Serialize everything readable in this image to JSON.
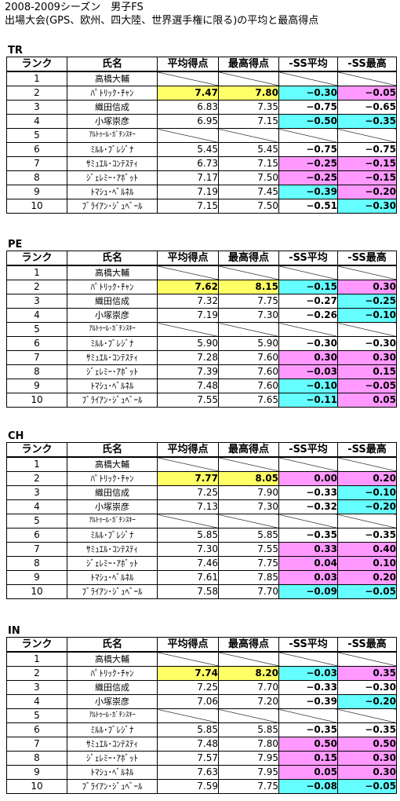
{
  "title_line1": "2008-2009シーズン　男子FS",
  "title_line2": "出場大会(GPS、欧州、四大陸、世界選手権に限る)の平均と最高得点",
  "headers": {
    "rank": "ランク",
    "name": "氏名",
    "avg": "平均得点",
    "max": "最高得点",
    "ss_avg": "-SS平均",
    "ss_max": "-SS最高"
  },
  "colors": {
    "yellow": "#ffff66",
    "cyan": "#66ffff",
    "pink": "#ff99ff"
  },
  "sections": [
    {
      "label": "TR",
      "rows": [
        {
          "rank": "1",
          "name": "高橋大輔",
          "avg": "",
          "max": "",
          "ss_avg": "",
          "ss_max": "",
          "ss_avg_color": "",
          "ss_max_color": "",
          "highlight": false,
          "blank": true
        },
        {
          "rank": "2",
          "name": "ﾊﾟﾄﾘｯｸ･ﾁｬﾝ",
          "avg": "7.47",
          "max": "7.80",
          "ss_avg": "−0.30",
          "ss_max": "−0.05",
          "ss_avg_color": "cyan",
          "ss_max_color": "pink",
          "highlight": true,
          "blank": false
        },
        {
          "rank": "3",
          "name": "織田信成",
          "avg": "6.83",
          "max": "7.35",
          "ss_avg": "−0.75",
          "ss_max": "−0.65",
          "ss_avg_color": "",
          "ss_max_color": "",
          "highlight": false,
          "blank": false
        },
        {
          "rank": "4",
          "name": "小塚崇彦",
          "avg": "6.95",
          "max": "7.15",
          "ss_avg": "−0.50",
          "ss_max": "−0.35",
          "ss_avg_color": "cyan",
          "ss_max_color": "cyan",
          "highlight": false,
          "blank": false
        },
        {
          "rank": "5",
          "name": "ｱﾙﾄｩｰﾙ･ｶﾞﾁﾝｽｷｰ",
          "avg": "",
          "max": "",
          "ss_avg": "",
          "ss_max": "",
          "ss_avg_color": "",
          "ss_max_color": "",
          "highlight": false,
          "blank": true,
          "narrow": true
        },
        {
          "rank": "6",
          "name": "ﾐﾙﾙ･ﾌﾞﾚｼﾞﾅ",
          "avg": "5.45",
          "max": "5.45",
          "ss_avg": "−0.75",
          "ss_max": "−0.75",
          "ss_avg_color": "",
          "ss_max_color": "",
          "highlight": false,
          "blank": false
        },
        {
          "rank": "7",
          "name": "ｻﾐｭｴﾙ･ｺﾝﾃｽﾃｨ",
          "avg": "6.73",
          "max": "7.15",
          "ss_avg": "−0.25",
          "ss_max": "−0.15",
          "ss_avg_color": "pink",
          "ss_max_color": "pink",
          "highlight": false,
          "blank": false
        },
        {
          "rank": "8",
          "name": "ｼﾞｪﾚﾐｰ･ｱﾎﾞｯﾄ",
          "avg": "7.17",
          "max": "7.50",
          "ss_avg": "−0.25",
          "ss_max": "−0.15",
          "ss_avg_color": "pink",
          "ss_max_color": "pink",
          "highlight": false,
          "blank": false
        },
        {
          "rank": "9",
          "name": "ﾄﾏｼｭ･ﾍﾞﾙﾈﾙ",
          "avg": "7.19",
          "max": "7.45",
          "ss_avg": "−0.39",
          "ss_max": "−0.20",
          "ss_avg_color": "cyan",
          "ss_max_color": "pink",
          "highlight": false,
          "blank": false
        },
        {
          "rank": "10",
          "name": "ﾌﾞﾗｲｱﾝ･ｼﾞｭﾍﾞｰﾙ",
          "avg": "7.15",
          "max": "7.50",
          "ss_avg": "−0.51",
          "ss_max": "−0.30",
          "ss_avg_color": "",
          "ss_max_color": "cyan",
          "highlight": false,
          "blank": false
        }
      ]
    },
    {
      "label": "PE",
      "rows": [
        {
          "rank": "1",
          "name": "高橋大輔",
          "avg": "",
          "max": "",
          "ss_avg": "",
          "ss_max": "",
          "ss_avg_color": "",
          "ss_max_color": "",
          "highlight": false,
          "blank": true
        },
        {
          "rank": "2",
          "name": "ﾊﾟﾄﾘｯｸ･ﾁｬﾝ",
          "avg": "7.62",
          "max": "8.15",
          "ss_avg": "−0.15",
          "ss_max": "0.30",
          "ss_avg_color": "cyan",
          "ss_max_color": "pink",
          "highlight": true,
          "blank": false
        },
        {
          "rank": "3",
          "name": "織田信成",
          "avg": "7.32",
          "max": "7.75",
          "ss_avg": "−0.27",
          "ss_max": "−0.25",
          "ss_avg_color": "",
          "ss_max_color": "cyan",
          "highlight": false,
          "blank": false
        },
        {
          "rank": "4",
          "name": "小塚崇彦",
          "avg": "7.19",
          "max": "7.30",
          "ss_avg": "−0.26",
          "ss_max": "−0.10",
          "ss_avg_color": "",
          "ss_max_color": "cyan",
          "highlight": false,
          "blank": false
        },
        {
          "rank": "5",
          "name": "ｱﾙﾄｩｰﾙ･ｶﾞﾁﾝｽｷｰ",
          "avg": "",
          "max": "",
          "ss_avg": "",
          "ss_max": "",
          "ss_avg_color": "",
          "ss_max_color": "",
          "highlight": false,
          "blank": true,
          "narrow": true
        },
        {
          "rank": "6",
          "name": "ﾐﾙﾙ･ﾌﾞﾚｼﾞﾅ",
          "avg": "5.90",
          "max": "5.90",
          "ss_avg": "−0.30",
          "ss_max": "−0.30",
          "ss_avg_color": "",
          "ss_max_color": "",
          "highlight": false,
          "blank": false
        },
        {
          "rank": "7",
          "name": "ｻﾐｭｴﾙ･ｺﾝﾃｽﾃｨ",
          "avg": "7.28",
          "max": "7.60",
          "ss_avg": "0.30",
          "ss_max": "0.30",
          "ss_avg_color": "pink",
          "ss_max_color": "pink",
          "highlight": false,
          "blank": false
        },
        {
          "rank": "8",
          "name": "ｼﾞｪﾚﾐｰ･ｱﾎﾞｯﾄ",
          "avg": "7.39",
          "max": "7.60",
          "ss_avg": "−0.03",
          "ss_max": "0.15",
          "ss_avg_color": "pink",
          "ss_max_color": "pink",
          "highlight": false,
          "blank": false
        },
        {
          "rank": "9",
          "name": "ﾄﾏｼｭ･ﾍﾞﾙﾈﾙ",
          "avg": "7.48",
          "max": "7.60",
          "ss_avg": "−0.10",
          "ss_max": "−0.05",
          "ss_avg_color": "cyan",
          "ss_max_color": "pink",
          "highlight": false,
          "blank": false
        },
        {
          "rank": "10",
          "name": "ﾌﾞﾗｲｱﾝ･ｼﾞｭﾍﾞｰﾙ",
          "avg": "7.55",
          "max": "7.65",
          "ss_avg": "−0.11",
          "ss_max": "0.05",
          "ss_avg_color": "cyan",
          "ss_max_color": "pink",
          "highlight": false,
          "blank": false
        }
      ]
    },
    {
      "label": "CH",
      "rows": [
        {
          "rank": "1",
          "name": "高橋大輔",
          "avg": "",
          "max": "",
          "ss_avg": "",
          "ss_max": "",
          "ss_avg_color": "",
          "ss_max_color": "",
          "highlight": false,
          "blank": true
        },
        {
          "rank": "2",
          "name": "ﾊﾟﾄﾘｯｸ･ﾁｬﾝ",
          "avg": "7.77",
          "max": "8.05",
          "ss_avg": "0.00",
          "ss_max": "0.20",
          "ss_avg_color": "pink",
          "ss_max_color": "pink",
          "highlight": true,
          "blank": false
        },
        {
          "rank": "3",
          "name": "織田信成",
          "avg": "7.25",
          "max": "7.90",
          "ss_avg": "−0.33",
          "ss_max": "−0.10",
          "ss_avg_color": "",
          "ss_max_color": "cyan",
          "highlight": false,
          "blank": false
        },
        {
          "rank": "4",
          "name": "小塚崇彦",
          "avg": "7.13",
          "max": "7.30",
          "ss_avg": "−0.32",
          "ss_max": "−0.20",
          "ss_avg_color": "",
          "ss_max_color": "cyan",
          "highlight": false,
          "blank": false
        },
        {
          "rank": "5",
          "name": "ｱﾙﾄｩｰﾙ･ｶﾞﾁﾝｽｷｰ",
          "avg": "",
          "max": "",
          "ss_avg": "",
          "ss_max": "",
          "ss_avg_color": "",
          "ss_max_color": "",
          "highlight": false,
          "blank": true,
          "narrow": true
        },
        {
          "rank": "6",
          "name": "ﾐﾙﾙ･ﾌﾞﾚｼﾞﾅ",
          "avg": "5.85",
          "max": "5.85",
          "ss_avg": "−0.35",
          "ss_max": "−0.35",
          "ss_avg_color": "",
          "ss_max_color": "",
          "highlight": false,
          "blank": false
        },
        {
          "rank": "7",
          "name": "ｻﾐｭｴﾙ･ｺﾝﾃｽﾃｨ",
          "avg": "7.30",
          "max": "7.55",
          "ss_avg": "0.33",
          "ss_max": "0.40",
          "ss_avg_color": "pink",
          "ss_max_color": "pink",
          "highlight": false,
          "blank": false
        },
        {
          "rank": "8",
          "name": "ｼﾞｪﾚﾐｰ･ｱﾎﾞｯﾄ",
          "avg": "7.46",
          "max": "7.75",
          "ss_avg": "0.04",
          "ss_max": "0.10",
          "ss_avg_color": "pink",
          "ss_max_color": "pink",
          "highlight": false,
          "blank": false
        },
        {
          "rank": "9",
          "name": "ﾄﾏｼｭ･ﾍﾞﾙﾈﾙ",
          "avg": "7.61",
          "max": "7.85",
          "ss_avg": "0.03",
          "ss_max": "0.20",
          "ss_avg_color": "pink",
          "ss_max_color": "pink",
          "highlight": false,
          "blank": false
        },
        {
          "rank": "10",
          "name": "ﾌﾞﾗｲｱﾝ･ｼﾞｭﾍﾞｰﾙ",
          "avg": "7.58",
          "max": "7.70",
          "ss_avg": "−0.09",
          "ss_max": "−0.05",
          "ss_avg_color": "cyan",
          "ss_max_color": "cyan",
          "highlight": false,
          "blank": false
        }
      ]
    },
    {
      "label": "IN",
      "rows": [
        {
          "rank": "1",
          "name": "高橋大輔",
          "avg": "",
          "max": "",
          "ss_avg": "",
          "ss_max": "",
          "ss_avg_color": "",
          "ss_max_color": "",
          "highlight": false,
          "blank": true
        },
        {
          "rank": "2",
          "name": "ﾊﾟﾄﾘｯｸ･ﾁｬﾝ",
          "avg": "7.74",
          "max": "8.20",
          "ss_avg": "−0.03",
          "ss_max": "0.35",
          "ss_avg_color": "cyan",
          "ss_max_color": "pink",
          "highlight": true,
          "blank": false
        },
        {
          "rank": "3",
          "name": "織田信成",
          "avg": "7.25",
          "max": "7.70",
          "ss_avg": "−0.33",
          "ss_max": "−0.30",
          "ss_avg_color": "",
          "ss_max_color": "",
          "highlight": false,
          "blank": false
        },
        {
          "rank": "4",
          "name": "小塚崇彦",
          "avg": "7.06",
          "max": "7.20",
          "ss_avg": "−0.39",
          "ss_max": "−0.20",
          "ss_avg_color": "",
          "ss_max_color": "cyan",
          "highlight": false,
          "blank": false
        },
        {
          "rank": "5",
          "name": "ｱﾙﾄｩｰﾙ･ｶﾞﾁﾝｽｷｰ",
          "avg": "",
          "max": "",
          "ss_avg": "",
          "ss_max": "",
          "ss_avg_color": "",
          "ss_max_color": "",
          "highlight": false,
          "blank": true,
          "narrow": true
        },
        {
          "rank": "6",
          "name": "ﾐﾙﾙ･ﾌﾞﾚｼﾞﾅ",
          "avg": "5.85",
          "max": "5.85",
          "ss_avg": "−0.35",
          "ss_max": "−0.35",
          "ss_avg_color": "",
          "ss_max_color": "",
          "highlight": false,
          "blank": false
        },
        {
          "rank": "7",
          "name": "ｻﾐｭｴﾙ･ｺﾝﾃｽﾃｨ",
          "avg": "7.48",
          "max": "7.80",
          "ss_avg": "0.50",
          "ss_max": "0.50",
          "ss_avg_color": "pink",
          "ss_max_color": "pink",
          "highlight": false,
          "blank": false
        },
        {
          "rank": "8",
          "name": "ｼﾞｪﾚﾐｰ･ｱﾎﾞｯﾄ",
          "avg": "7.57",
          "max": "7.95",
          "ss_avg": "0.15",
          "ss_max": "0.30",
          "ss_avg_color": "pink",
          "ss_max_color": "pink",
          "highlight": false,
          "blank": false
        },
        {
          "rank": "9",
          "name": "ﾄﾏｼｭ･ﾍﾞﾙﾈﾙ",
          "avg": "7.63",
          "max": "7.95",
          "ss_avg": "0.05",
          "ss_max": "0.30",
          "ss_avg_color": "pink",
          "ss_max_color": "pink",
          "highlight": false,
          "blank": false
        },
        {
          "rank": "10",
          "name": "ﾌﾞﾗｲｱﾝ･ｼﾞｭﾍﾞｰﾙ",
          "avg": "7.59",
          "max": "7.75",
          "ss_avg": "−0.08",
          "ss_max": "−0.05",
          "ss_avg_color": "cyan",
          "ss_max_color": "cyan",
          "highlight": false,
          "blank": false
        }
      ]
    }
  ]
}
